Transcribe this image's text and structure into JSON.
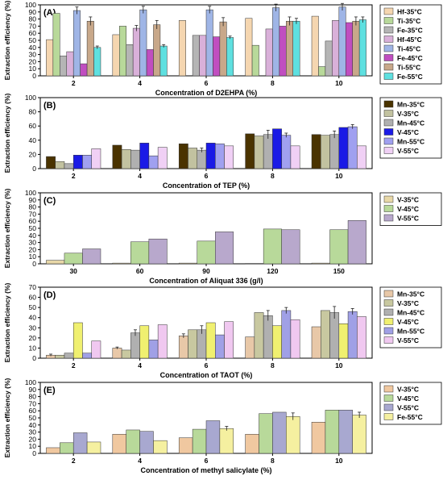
{
  "chart_data": [
    {
      "panel": "(A)",
      "type": "bar",
      "xlabel": "Concentration of D2EHPA (%)",
      "ylabel": "Extraction efficiency (%)",
      "ylim": [
        0,
        100
      ],
      "yticks": [
        0,
        10,
        20,
        30,
        40,
        50,
        60,
        70,
        80,
        90,
        100
      ],
      "categories": [
        "2",
        "4",
        "6",
        "8",
        "10"
      ],
      "legend_position": "right",
      "series": [
        {
          "name": "Hf-35°C",
          "color": "#f5d6b0",
          "values": [
            51,
            58,
            78,
            81,
            84
          ]
        },
        {
          "name": "Ti-35°C",
          "color": "#b8d99a",
          "values": [
            88,
            70,
            0,
            43,
            13
          ]
        },
        {
          "name": "Fe-35°C",
          "color": "#b5b5b5",
          "values": [
            28,
            44,
            57,
            0,
            49
          ]
        },
        {
          "name": "Hf-45°C",
          "color": "#d9b0d9",
          "values": [
            34,
            67,
            57,
            66,
            78
          ],
          "errors": [
            0,
            4,
            0,
            0,
            0
          ]
        },
        {
          "name": "Ti-45°C",
          "color": "#9fb5e6",
          "values": [
            92,
            93,
            93,
            96,
            97
          ],
          "errors": [
            5,
            5,
            5,
            5,
            5
          ]
        },
        {
          "name": "Fe-45°C",
          "color": "#c04ec0",
          "values": [
            17,
            37,
            55,
            70,
            75
          ],
          "errors": [
            0,
            0,
            0,
            0,
            0
          ]
        },
        {
          "name": "Ti-55°C",
          "color": "#c8a88a",
          "values": [
            77,
            72,
            76,
            77,
            77
          ],
          "errors": [
            6,
            6,
            6,
            6,
            6
          ]
        },
        {
          "name": "Fe-55°C",
          "color": "#5ee0e0",
          "values": [
            40,
            42,
            54,
            77,
            79
          ],
          "errors": [
            2,
            2,
            2,
            4,
            4
          ]
        }
      ]
    },
    {
      "panel": "(B)",
      "type": "bar",
      "xlabel": "Concentration of TEP (%)",
      "ylabel": "Extraction efficiency (%)",
      "ylim": [
        0,
        100
      ],
      "yticks": [
        0,
        20,
        40,
        60,
        80,
        100
      ],
      "categories": [
        "2",
        "4",
        "6",
        "8",
        "10"
      ],
      "legend_position": "right",
      "series": [
        {
          "name": "Mn-35°C",
          "color": "#4a3300",
          "values": [
            17,
            33,
            35,
            49,
            48
          ]
        },
        {
          "name": "V-35°C",
          "color": "#c2c2a0",
          "values": [
            10,
            27,
            29,
            46,
            47
          ]
        },
        {
          "name": "Mn-45°C",
          "color": "#b0b0b0",
          "values": [
            7,
            26,
            26,
            48,
            48
          ],
          "errors": [
            0,
            0,
            3,
            6,
            5
          ]
        },
        {
          "name": "V-45°C",
          "color": "#1a1ae6",
          "values": [
            19,
            36,
            36,
            56,
            58
          ]
        },
        {
          "name": "Mn-55°C",
          "color": "#a0a0f0",
          "values": [
            19,
            18,
            35,
            47,
            59
          ],
          "errors": [
            0,
            0,
            0,
            3,
            3
          ]
        },
        {
          "name": "V-55°C",
          "color": "#f0d0f5",
          "values": [
            28,
            30,
            32,
            32,
            32
          ]
        }
      ]
    },
    {
      "panel": "(C)",
      "type": "bar",
      "xlabel": "Concentration of Aliquat 336 (g/l)",
      "ylabel": "Extraction efficiency (%)",
      "ylim": [
        0,
        100
      ],
      "yticks": [
        0,
        10,
        20,
        30,
        40,
        50,
        60,
        70,
        80,
        90,
        100
      ],
      "categories": [
        "30",
        "60",
        "90",
        "120",
        "150"
      ],
      "legend_position": "right",
      "series": [
        {
          "name": "V-35°C",
          "color": "#e8d8a8",
          "values": [
            5,
            1,
            1,
            0.5,
            1
          ]
        },
        {
          "name": "V-45°C",
          "color": "#b8d99a",
          "values": [
            15,
            31,
            32,
            49,
            48
          ]
        },
        {
          "name": "V-55°C",
          "color": "#b8a8cc",
          "values": [
            21,
            35,
            45,
            48,
            61
          ]
        }
      ]
    },
    {
      "panel": "(D)",
      "type": "bar",
      "xlabel": "Concentration of TAOT (%)",
      "ylabel": "Extraction efficiency (%)",
      "ylim": [
        0,
        70
      ],
      "yticks": [
        0,
        10,
        20,
        30,
        40,
        50,
        60,
        70
      ],
      "categories": [
        "2",
        "4",
        "6",
        "8",
        "10"
      ],
      "legend_position": "right",
      "series": [
        {
          "name": "Mn-35°C",
          "color": "#e8c8a8",
          "values": [
            3,
            10,
            22,
            21,
            31
          ],
          "errors": [
            1,
            1,
            2,
            0,
            0
          ]
        },
        {
          "name": "V-35°C",
          "color": "#c8c8a0",
          "values": [
            3,
            8,
            28,
            45,
            47
          ]
        },
        {
          "name": "Mn-45°C",
          "color": "#b0b0b0",
          "values": [
            5,
            25,
            28,
            42,
            45
          ],
          "errors": [
            0,
            3,
            4,
            5,
            6
          ]
        },
        {
          "name": "V-45°C",
          "color": "#f0f070",
          "values": [
            35,
            32,
            35,
            32,
            34
          ]
        },
        {
          "name": "Mn-55°C",
          "color": "#a0a0e6",
          "values": [
            5,
            18,
            23,
            47,
            46
          ],
          "errors": [
            0,
            0,
            0,
            3,
            3
          ]
        },
        {
          "name": "V-55°C",
          "color": "#f0c8f0",
          "values": [
            17,
            33,
            36,
            38,
            41
          ]
        }
      ]
    },
    {
      "panel": "(E)",
      "type": "bar",
      "xlabel": "Concentration of methyl salicylate (%)",
      "ylabel": "Extraction efficiency (%)",
      "ylim": [
        0,
        100
      ],
      "yticks": [
        0,
        10,
        20,
        30,
        40,
        50,
        60,
        70,
        80,
        90,
        100
      ],
      "categories": [
        "2",
        "4",
        "6",
        "8",
        "10"
      ],
      "legend_position": "right",
      "series": [
        {
          "name": "V-35°C",
          "color": "#f0c8a0",
          "values": [
            8,
            27,
            22,
            27,
            44
          ]
        },
        {
          "name": "V-45°C",
          "color": "#b8d99a",
          "values": [
            15,
            33,
            34,
            56,
            61
          ]
        },
        {
          "name": "V-55°C",
          "color": "#a8a8d0",
          "values": [
            29,
            31,
            46,
            58,
            61
          ]
        },
        {
          "name": "Fe-55°C",
          "color": "#f5f0a0",
          "values": [
            16,
            18,
            35,
            52,
            54
          ],
          "errors": [
            0,
            0,
            3,
            5,
            4
          ]
        }
      ]
    }
  ]
}
